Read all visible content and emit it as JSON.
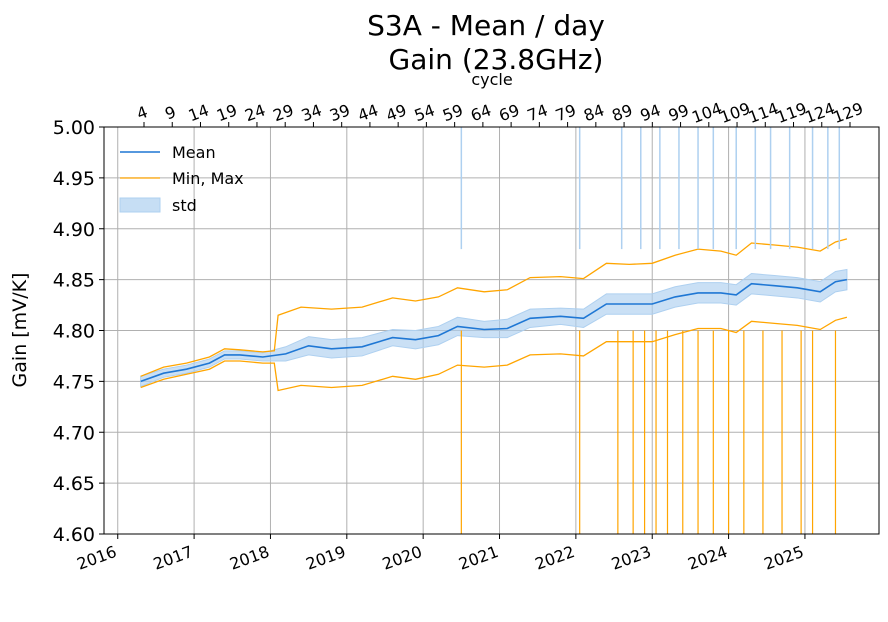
{
  "chart_data": {
    "type": "line",
    "title_line1": "S3A - Mean / day",
    "title_line2": "Gain (23.8GHz)",
    "ylabel": "Gain [mV/K]",
    "top_axis_label": "cycle",
    "ylim": [
      4.6,
      5.0
    ],
    "xlim": [
      2015.82,
      2025.97
    ],
    "y_ticks": [
      "4.60",
      "4.65",
      "4.70",
      "4.75",
      "4.80",
      "4.85",
      "4.90",
      "4.95",
      "5.00"
    ],
    "x_ticks": [
      "2016",
      "2017",
      "2018",
      "2019",
      "2020",
      "2021",
      "2022",
      "2023",
      "2024",
      "2025"
    ],
    "cycle_ticks": [
      "4",
      "9",
      "14",
      "19",
      "24",
      "29",
      "34",
      "39",
      "44",
      "49",
      "54",
      "59",
      "64",
      "69",
      "74",
      "79",
      "84",
      "89",
      "94",
      "99",
      "104",
      "109",
      "114",
      "119",
      "124",
      "129"
    ],
    "legend": {
      "placement": "top-left",
      "mean": "Mean",
      "minmax": "Min, Max",
      "std": "std"
    },
    "colors": {
      "mean": "#1f77d4",
      "minmax": "#ffa500",
      "std": "#aed0f0",
      "grid": "#b0b0b0"
    },
    "series": [
      {
        "name": "Mean",
        "x": [
          2016.3,
          2016.6,
          2016.9,
          2017.2,
          2017.4,
          2017.6,
          2017.9,
          2018.2,
          2018.5,
          2018.8,
          2019.2,
          2019.6,
          2019.9,
          2020.2,
          2020.45,
          2020.8,
          2021.1,
          2021.4,
          2021.8,
          2022.1,
          2022.4,
          2022.7,
          2023.0,
          2023.3,
          2023.6,
          2023.9,
          2024.1,
          2024.3,
          2024.6,
          2024.9,
          2025.2,
          2025.4,
          2025.55
        ],
        "y": [
          4.75,
          4.758,
          4.762,
          4.768,
          4.776,
          4.776,
          4.774,
          4.777,
          4.785,
          4.782,
          4.784,
          4.793,
          4.791,
          4.795,
          4.804,
          4.801,
          4.802,
          4.812,
          4.814,
          4.812,
          4.826,
          4.826,
          4.826,
          4.833,
          4.837,
          4.837,
          4.835,
          4.846,
          4.844,
          4.842,
          4.838,
          4.848,
          4.85
        ]
      },
      {
        "name": "std",
        "x": [
          2016.3,
          2016.6,
          2016.9,
          2017.2,
          2017.4,
          2017.6,
          2017.9,
          2018.2,
          2018.5,
          2018.8,
          2019.2,
          2019.6,
          2019.9,
          2020.2,
          2020.45,
          2020.8,
          2021.1,
          2021.4,
          2021.8,
          2022.1,
          2022.4,
          2022.7,
          2023.0,
          2023.3,
          2023.6,
          2023.9,
          2024.1,
          2024.3,
          2024.6,
          2024.9,
          2025.2,
          2025.4,
          2025.55
        ],
        "y_low": [
          4.745,
          4.754,
          4.758,
          4.764,
          4.772,
          4.772,
          4.77,
          4.77,
          4.776,
          4.773,
          4.775,
          4.785,
          4.782,
          4.786,
          4.795,
          4.793,
          4.793,
          4.803,
          4.806,
          4.803,
          4.816,
          4.816,
          4.816,
          4.823,
          4.827,
          4.827,
          4.825,
          4.836,
          4.834,
          4.832,
          4.828,
          4.838,
          4.84
        ],
        "y_high": [
          4.755,
          4.762,
          4.766,
          4.772,
          4.78,
          4.78,
          4.778,
          4.784,
          4.794,
          4.791,
          4.793,
          4.801,
          4.8,
          4.804,
          4.813,
          4.809,
          4.811,
          4.821,
          4.822,
          4.821,
          4.836,
          4.836,
          4.836,
          4.843,
          4.847,
          4.847,
          4.845,
          4.856,
          4.854,
          4.852,
          4.848,
          4.858,
          4.86
        ]
      },
      {
        "name": "Max",
        "x": [
          2016.3,
          2016.6,
          2016.9,
          2017.2,
          2017.4,
          2017.6,
          2017.9,
          2018.05,
          2018.1,
          2018.4,
          2018.8,
          2019.2,
          2019.6,
          2019.9,
          2020.2,
          2020.45,
          2020.8,
          2021.1,
          2021.4,
          2021.8,
          2022.1,
          2022.4,
          2022.7,
          2023.0,
          2023.3,
          2023.6,
          2023.9,
          2024.1,
          2024.3,
          2024.6,
          2024.9,
          2025.2,
          2025.4,
          2025.55
        ],
        "y": [
          4.755,
          4.764,
          4.768,
          4.774,
          4.782,
          4.781,
          4.779,
          4.78,
          4.815,
          4.823,
          4.821,
          4.823,
          4.832,
          4.829,
          4.833,
          4.842,
          4.838,
          4.84,
          4.852,
          4.853,
          4.851,
          4.866,
          4.865,
          4.866,
          4.874,
          4.88,
          4.878,
          4.874,
          4.886,
          4.884,
          4.882,
          4.878,
          4.887,
          4.89
        ]
      },
      {
        "name": "Min",
        "x": [
          2016.3,
          2016.6,
          2016.9,
          2017.2,
          2017.4,
          2017.6,
          2017.9,
          2018.05,
          2018.1,
          2018.4,
          2018.8,
          2019.2,
          2019.6,
          2019.9,
          2020.2,
          2020.45,
          2020.8,
          2021.1,
          2021.4,
          2021.8,
          2022.1,
          2022.4,
          2022.7,
          2023.0,
          2023.3,
          2023.6,
          2023.9,
          2024.1,
          2024.3,
          2024.6,
          2024.9,
          2025.2,
          2025.4,
          2025.55
        ],
        "y": [
          4.744,
          4.752,
          4.757,
          4.762,
          4.77,
          4.77,
          4.768,
          4.768,
          4.741,
          4.746,
          4.744,
          4.746,
          4.755,
          4.752,
          4.757,
          4.766,
          4.764,
          4.766,
          4.776,
          4.777,
          4.775,
          4.789,
          4.789,
          4.789,
          4.796,
          4.802,
          4.802,
          4.798,
          4.809,
          4.807,
          4.805,
          4.801,
          4.81,
          4.813
        ]
      }
    ],
    "spikes_max": [
      2020.5,
      2022.05,
      2022.6,
      2022.85,
      2023.1,
      2023.35,
      2023.6,
      2023.8,
      2024.1,
      2024.35,
      2024.55,
      2024.8,
      2025.1,
      2025.3,
      2025.45
    ],
    "spikes_min": [
      2020.5,
      2022.05,
      2022.55,
      2022.75,
      2022.9,
      2023.05,
      2023.2,
      2023.4,
      2023.6,
      2023.8,
      2024.0,
      2024.2,
      2024.45,
      2024.7,
      2024.95,
      2025.1,
      2025.4
    ]
  }
}
